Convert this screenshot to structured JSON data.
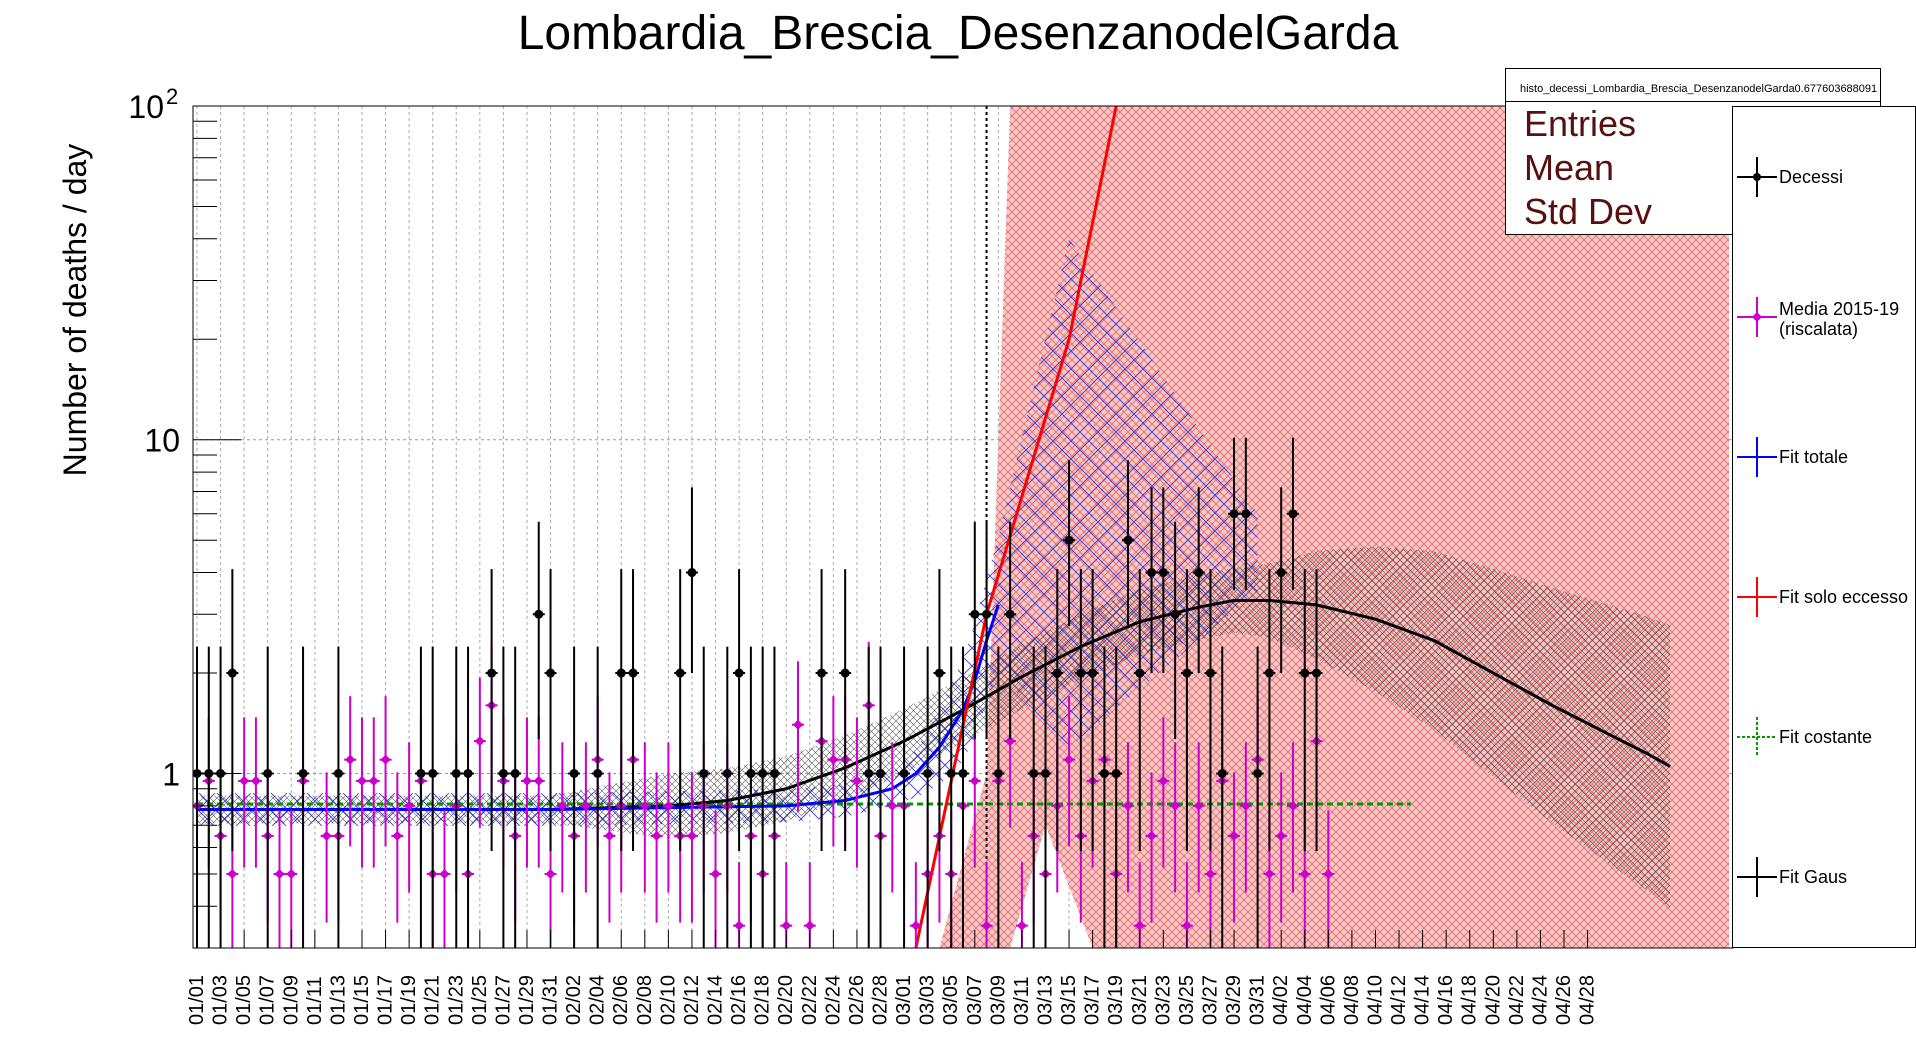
{
  "chart_data": {
    "type": "scatter",
    "title": "Lombardia_Brescia_DesenzanodelGarda",
    "ylabel": "Number of deaths / day",
    "xlabel": "",
    "yscale": "log",
    "ylim": [
      0.3,
      100
    ],
    "ytick_labels": [
      {
        "value": 1,
        "label": "1"
      },
      {
        "value": 10,
        "label": "10"
      },
      {
        "value": 100,
        "label": "10",
        "sup": "2"
      }
    ],
    "x_tick_labels": [
      "01/01",
      "01/03",
      "01/05",
      "01/07",
      "01/09",
      "01/11",
      "01/13",
      "01/15",
      "01/17",
      "01/19",
      "01/21",
      "01/23",
      "01/25",
      "01/27",
      "01/29",
      "01/31",
      "02/02",
      "02/04",
      "02/06",
      "02/08",
      "02/10",
      "02/12",
      "02/14",
      "02/16",
      "02/18",
      "02/20",
      "02/22",
      "02/24",
      "02/26",
      "02/28",
      "03/01",
      "03/03",
      "03/05",
      "03/07",
      "03/09",
      "03/11",
      "03/13",
      "03/15",
      "03/17",
      "03/19",
      "03/21",
      "03/23",
      "03/25",
      "03/27",
      "03/29",
      "03/31",
      "04/02",
      "04/04",
      "04/06",
      "04/08",
      "04/10",
      "04/12",
      "04/14",
      "04/16",
      "04/18",
      "04/20",
      "04/22",
      "04/24",
      "04/26",
      "04/28"
    ],
    "grid": true,
    "legend_position": "right",
    "vertical_line_day": 67,
    "series": [
      {
        "name": "Decessi",
        "color": "#000000",
        "points": [
          {
            "day": 0,
            "value": 1
          },
          {
            "day": 1,
            "value": 1
          },
          {
            "day": 2,
            "value": 1
          },
          {
            "day": 3,
            "value": 2
          },
          {
            "day": 6,
            "value": 1
          },
          {
            "day": 9,
            "value": 1
          },
          {
            "day": 12,
            "value": 1
          },
          {
            "day": 19,
            "value": 1
          },
          {
            "day": 20,
            "value": 1
          },
          {
            "day": 22,
            "value": 1
          },
          {
            "day": 23,
            "value": 1
          },
          {
            "day": 25,
            "value": 2
          },
          {
            "day": 26,
            "value": 1
          },
          {
            "day": 27,
            "value": 1
          },
          {
            "day": 29,
            "value": 3
          },
          {
            "day": 30,
            "value": 2
          },
          {
            "day": 32,
            "value": 1
          },
          {
            "day": 34,
            "value": 1
          },
          {
            "day": 36,
            "value": 2
          },
          {
            "day": 37,
            "value": 2
          },
          {
            "day": 41,
            "value": 2
          },
          {
            "day": 42,
            "value": 4
          },
          {
            "day": 43,
            "value": 1
          },
          {
            "day": 45,
            "value": 1
          },
          {
            "day": 46,
            "value": 2
          },
          {
            "day": 47,
            "value": 1
          },
          {
            "day": 48,
            "value": 1
          },
          {
            "day": 49,
            "value": 1
          },
          {
            "day": 53,
            "value": 2
          },
          {
            "day": 55,
            "value": 2
          },
          {
            "day": 57,
            "value": 1
          },
          {
            "day": 58,
            "value": 1
          },
          {
            "day": 60,
            "value": 1
          },
          {
            "day": 62,
            "value": 1
          },
          {
            "day": 63,
            "value": 2
          },
          {
            "day": 64,
            "value": 1
          },
          {
            "day": 65,
            "value": 1
          },
          {
            "day": 66,
            "value": 3
          },
          {
            "day": 67,
            "value": 3
          },
          {
            "day": 68,
            "value": 1
          },
          {
            "day": 69,
            "value": 3
          },
          {
            "day": 71,
            "value": 1
          },
          {
            "day": 72,
            "value": 1
          },
          {
            "day": 73,
            "value": 2
          },
          {
            "day": 74,
            "value": 5
          },
          {
            "day": 75,
            "value": 2
          },
          {
            "day": 76,
            "value": 2
          },
          {
            "day": 77,
            "value": 1
          },
          {
            "day": 78,
            "value": 1
          },
          {
            "day": 79,
            "value": 5
          },
          {
            "day": 80,
            "value": 2
          },
          {
            "day": 81,
            "value": 4
          },
          {
            "day": 82,
            "value": 4
          },
          {
            "day": 83,
            "value": 3
          },
          {
            "day": 84,
            "value": 2
          },
          {
            "day": 85,
            "value": 4
          },
          {
            "day": 86,
            "value": 2
          },
          {
            "day": 87,
            "value": 1
          },
          {
            "day": 88,
            "value": 6
          },
          {
            "day": 89,
            "value": 6
          },
          {
            "day": 90,
            "value": 1
          },
          {
            "day": 91,
            "value": 2
          },
          {
            "day": 92,
            "value": 4
          },
          {
            "day": 93,
            "value": 6
          },
          {
            "day": 94,
            "value": 2
          },
          {
            "day": 95,
            "value": 2
          }
        ]
      },
      {
        "name": "Media 2015-19 (riscalata)",
        "color": "#cc00cc",
        "points": [
          {
            "day": 0,
            "value": 0.8
          },
          {
            "day": 1,
            "value": 0.95
          },
          {
            "day": 2,
            "value": 0.65
          },
          {
            "day": 3,
            "value": 0.5
          },
          {
            "day": 4,
            "value": 0.95
          },
          {
            "day": 5,
            "value": 0.95
          },
          {
            "day": 6,
            "value": 0.65
          },
          {
            "day": 7,
            "value": 0.5
          },
          {
            "day": 8,
            "value": 0.5
          },
          {
            "day": 9,
            "value": 0.95
          },
          {
            "day": 11,
            "value": 0.65
          },
          {
            "day": 12,
            "value": 0.65
          },
          {
            "day": 13,
            "value": 1.1
          },
          {
            "day": 14,
            "value": 0.95
          },
          {
            "day": 15,
            "value": 0.95
          },
          {
            "day": 16,
            "value": 1.1
          },
          {
            "day": 17,
            "value": 0.65
          },
          {
            "day": 18,
            "value": 0.8
          },
          {
            "day": 19,
            "value": 0.95
          },
          {
            "day": 20,
            "value": 0.5
          },
          {
            "day": 21,
            "value": 0.5
          },
          {
            "day": 22,
            "value": 0.8
          },
          {
            "day": 23,
            "value": 0.5
          },
          {
            "day": 24,
            "value": 1.25
          },
          {
            "day": 25,
            "value": 1.6
          },
          {
            "day": 26,
            "value": 0.95
          },
          {
            "day": 27,
            "value": 0.65
          },
          {
            "day": 28,
            "value": 0.95
          },
          {
            "day": 29,
            "value": 0.95
          },
          {
            "day": 30,
            "value": 0.5
          },
          {
            "day": 31,
            "value": 0.8
          },
          {
            "day": 32,
            "value": 0.65
          },
          {
            "day": 33,
            "value": 0.8
          },
          {
            "day": 34,
            "value": 1.1
          },
          {
            "day": 35,
            "value": 0.65
          },
          {
            "day": 36,
            "value": 0.8
          },
          {
            "day": 37,
            "value": 1.1
          },
          {
            "day": 38,
            "value": 0.8
          },
          {
            "day": 39,
            "value": 0.65
          },
          {
            "day": 40,
            "value": 0.8
          },
          {
            "day": 41,
            "value": 0.65
          },
          {
            "day": 42,
            "value": 0.65
          },
          {
            "day": 43,
            "value": 0.8
          },
          {
            "day": 44,
            "value": 0.5
          },
          {
            "day": 45,
            "value": 0.8
          },
          {
            "day": 46,
            "value": 0.35
          },
          {
            "day": 47,
            "value": 0.65
          },
          {
            "day": 48,
            "value": 0.5
          },
          {
            "day": 49,
            "value": 0.65
          },
          {
            "day": 50,
            "value": 0.35
          },
          {
            "day": 51,
            "value": 1.4
          },
          {
            "day": 52,
            "value": 0.35
          },
          {
            "day": 53,
            "value": 1.25
          },
          {
            "day": 54,
            "value": 1.1
          },
          {
            "day": 55,
            "value": 1.1
          },
          {
            "day": 56,
            "value": 0.95
          },
          {
            "day": 57,
            "value": 1.6
          },
          {
            "day": 58,
            "value": 0.65
          },
          {
            "day": 59,
            "value": 0.8
          },
          {
            "day": 60,
            "value": 0.8
          },
          {
            "day": 61,
            "value": 0.35
          },
          {
            "day": 62,
            "value": 0.5
          },
          {
            "day": 63,
            "value": 0.65
          },
          {
            "day": 64,
            "value": 0.5
          },
          {
            "day": 65,
            "value": 0.8
          },
          {
            "day": 66,
            "value": 0.95
          },
          {
            "day": 67,
            "value": 0.35
          },
          {
            "day": 68,
            "value": 0.95
          },
          {
            "day": 69,
            "value": 1.25
          },
          {
            "day": 70,
            "value": 0.35
          },
          {
            "day": 71,
            "value": 0.65
          },
          {
            "day": 72,
            "value": 0.5
          },
          {
            "day": 73,
            "value": 0.8
          },
          {
            "day": 74,
            "value": 1.1
          },
          {
            "day": 75,
            "value": 0.65
          },
          {
            "day": 76,
            "value": 0.95
          },
          {
            "day": 77,
            "value": 1.1
          },
          {
            "day": 78,
            "value": 0.5
          },
          {
            "day": 79,
            "value": 0.8
          },
          {
            "day": 80,
            "value": 0.35
          },
          {
            "day": 81,
            "value": 0.65
          },
          {
            "day": 82,
            "value": 0.95
          },
          {
            "day": 83,
            "value": 0.8
          },
          {
            "day": 84,
            "value": 0.35
          },
          {
            "day": 85,
            "value": 0.8
          },
          {
            "day": 86,
            "value": 0.5
          },
          {
            "day": 87,
            "value": 0.95
          },
          {
            "day": 88,
            "value": 0.65
          },
          {
            "day": 89,
            "value": 0.8
          },
          {
            "day": 90,
            "value": 1.1
          },
          {
            "day": 91,
            "value": 0.5
          },
          {
            "day": 92,
            "value": 0.65
          },
          {
            "day": 93,
            "value": 0.8
          },
          {
            "day": 94,
            "value": 0.5
          },
          {
            "day": 95,
            "value": 1.25
          },
          {
            "day": 96,
            "value": 0.5
          }
        ]
      },
      {
        "name": "Fit totale",
        "color": "#0000ff",
        "line": [
          {
            "day": 0,
            "value": 0.78
          },
          {
            "day": 30,
            "value": 0.78
          },
          {
            "day": 40,
            "value": 0.79
          },
          {
            "day": 50,
            "value": 0.8
          },
          {
            "day": 55,
            "value": 0.83
          },
          {
            "day": 59,
            "value": 0.9
          },
          {
            "day": 61,
            "value": 1.0
          },
          {
            "day": 63,
            "value": 1.2
          },
          {
            "day": 65,
            "value": 1.55
          },
          {
            "day": 66,
            "value": 1.9
          },
          {
            "day": 67,
            "value": 2.5
          },
          {
            "day": 68,
            "value": 3.2
          }
        ]
      },
      {
        "name": "Fit solo eccesso",
        "color": "#ff0000",
        "line": [
          {
            "day": 61,
            "value": 0.3
          },
          {
            "day": 67,
            "value": 3.0
          },
          {
            "day": 74,
            "value": 20
          },
          {
            "day": 78,
            "value": 100
          }
        ]
      },
      {
        "name": "Fit costante",
        "color": "#009900",
        "line": [
          {
            "day": 0,
            "value": 0.81
          },
          {
            "day": 103,
            "value": 0.81
          }
        ]
      },
      {
        "name": "Fit Gaus",
        "color": "#000000",
        "line": [
          {
            "day": 0,
            "value": 0.78
          },
          {
            "day": 30,
            "value": 0.78
          },
          {
            "day": 40,
            "value": 0.8
          },
          {
            "day": 45,
            "value": 0.83
          },
          {
            "day": 50,
            "value": 0.9
          },
          {
            "day": 55,
            "value": 1.04
          },
          {
            "day": 60,
            "value": 1.25
          },
          {
            "day": 65,
            "value": 1.55
          },
          {
            "day": 70,
            "value": 1.95
          },
          {
            "day": 75,
            "value": 2.4
          },
          {
            "day": 80,
            "value": 2.85
          },
          {
            "day": 85,
            "value": 3.15
          },
          {
            "day": 88,
            "value": 3.3
          },
          {
            "day": 91,
            "value": 3.3
          },
          {
            "day": 95,
            "value": 3.2
          },
          {
            "day": 100,
            "value": 2.9
          },
          {
            "day": 105,
            "value": 2.5
          },
          {
            "day": 110,
            "value": 2.0
          },
          {
            "day": 115,
            "value": 1.6
          },
          {
            "day": 120,
            "value": 1.3
          },
          {
            "day": 123,
            "value": 1.15
          },
          {
            "day": 125,
            "value": 1.05
          }
        ]
      }
    ]
  },
  "stats_box": {
    "name": "histo_decessi_Lombardia_Brescia_DesenzanodelGarda0.677603688091",
    "rows": [
      "Entries",
      "Mean",
      "Std Dev"
    ]
  },
  "legend": {
    "items": [
      {
        "label": "Decessi",
        "color": "#000000"
      },
      {
        "label": "Media 2015-19\n(riscalata)",
        "color": "#cc00cc"
      },
      {
        "label": "Fit totale",
        "color": "#0000ff"
      },
      {
        "label": "Fit solo eccesso",
        "color": "#ff0000"
      },
      {
        "label": "Fit costante",
        "color": "#009900"
      },
      {
        "label": "Fit Gaus",
        "color": "#000000"
      }
    ]
  }
}
